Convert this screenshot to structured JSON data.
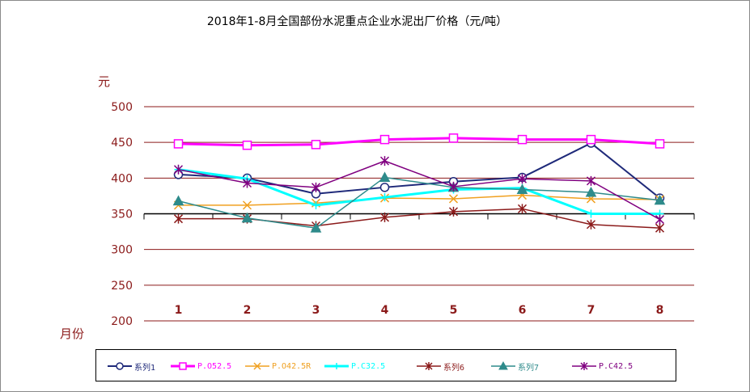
{
  "title": "2018年1-8月全国部份水泥重点企业水泥出厂价格（元/吨）",
  "y_unit": "元",
  "x_unit": "月份",
  "chart_data": {
    "type": "line",
    "title": "2018年1-8月全国部份水泥重点企业水泥出厂价格（元/吨）",
    "xlabel": "月份",
    "ylabel": "元",
    "categories": [
      "1",
      "2",
      "3",
      "4",
      "5",
      "6",
      "7",
      "8"
    ],
    "ylim": [
      200,
      500
    ],
    "yticks": [
      "500",
      "450",
      "400",
      "350",
      "300",
      "250",
      "200"
    ],
    "grid": true,
    "legend_position": "bottom",
    "series": [
      {
        "name": "系列1",
        "color": "#1f2a7a",
        "marker": "circle",
        "width": 2,
        "values": [
          405,
          400,
          378,
          387,
          395,
          401,
          449,
          372
        ]
      },
      {
        "name": "P.O52.5",
        "color": "#ff00ff",
        "marker": "square",
        "width": 3,
        "values": [
          448,
          446,
          447,
          454,
          456,
          454,
          454,
          448
        ]
      },
      {
        "name": "P.O42.5R",
        "color": "#f0a020",
        "marker": "x",
        "width": 1.5,
        "values": [
          362,
          362,
          365,
          372,
          371,
          376,
          371,
          370
        ]
      },
      {
        "name": "P.C32.5",
        "color": "#00ffff",
        "marker": "plus",
        "width": 3,
        "values": [
          412,
          399,
          362,
          373,
          384,
          386,
          350,
          350
        ]
      },
      {
        "name": "系列6",
        "color": "#8b1a1a",
        "marker": "star",
        "width": 1.5,
        "values": [
          343,
          343,
          333,
          345,
          353,
          357,
          335,
          330
        ]
      },
      {
        "name": "系列7",
        "color": "#2e8b8b",
        "marker": "triangle",
        "width": 1.5,
        "values": [
          368,
          344,
          330,
          401,
          387,
          384,
          380,
          369
        ]
      },
      {
        "name": "P.C42.5",
        "color": "#800080",
        "marker": "star",
        "width": 1.5,
        "values": [
          412,
          393,
          387,
          424,
          388,
          399,
          396,
          342
        ]
      }
    ]
  }
}
